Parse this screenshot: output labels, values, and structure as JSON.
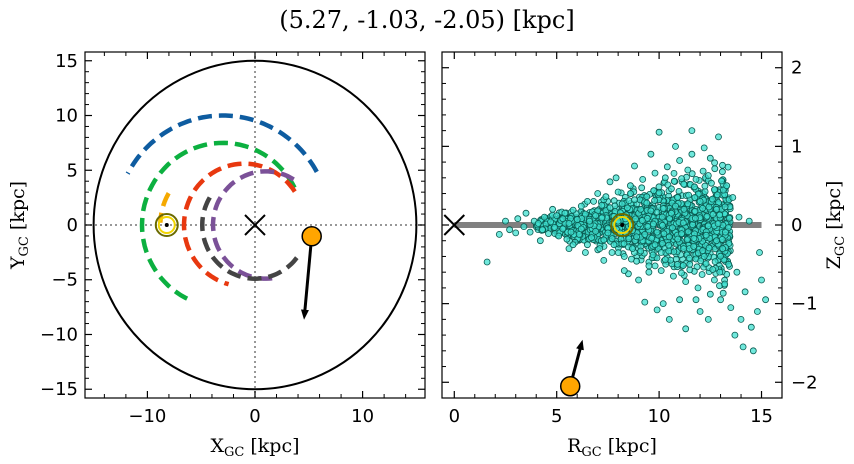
{
  "title": "(5.27, -1.03, -2.05) [kpc]",
  "chart_data": [
    {
      "type": "line",
      "panel": "left",
      "xlabel": "X",
      "xlabel_sub": "GC",
      "xlabel_unit": " [kpc]",
      "ylabel": "Y",
      "ylabel_sub": "GC",
      "ylabel_unit": " [kpc]",
      "xlim": [
        -15.8,
        15.8
      ],
      "ylim": [
        -15.8,
        15.8
      ],
      "xticks": [
        -10,
        0,
        10
      ],
      "xtick_labels": [
        "−10",
        "0",
        "10"
      ],
      "yticks": [
        -15,
        -10,
        -5,
        0,
        5,
        10,
        15
      ],
      "ytick_labels": [
        "−15",
        "−10",
        "−5",
        "0",
        "5",
        "10",
        "15"
      ],
      "boundary_circle_radius": 15,
      "arcs": [
        {
          "color": "#0e5ca0",
          "center": [
            -3.0,
            0.0
          ],
          "radius": 10.0,
          "theta_deg": [
            29,
            152
          ]
        },
        {
          "color": "#0cb040",
          "center": [
            -3.0,
            0.0
          ],
          "radius": 7.5,
          "theta_deg": [
            27,
            246
          ]
        },
        {
          "color": "#f5a900",
          "center": [
            -3.0,
            0.0
          ],
          "radius": 5.8,
          "theta_deg": [
            150,
            178
          ]
        },
        {
          "color": "#e8380f",
          "center": [
            -1.0,
            0.0
          ],
          "radius": 5.6,
          "theta_deg": [
            33,
            255
          ]
        },
        {
          "color": "#7b5198",
          "center": [
            1.0,
            0.0
          ],
          "radius": 4.9,
          "theta_deg": [
            58,
            278
          ]
        },
        {
          "color": "#444444",
          "center": [
            0.0,
            0.0
          ],
          "radius": 4.9,
          "theta_deg": [
            149,
            326
          ]
        }
      ],
      "galactic_center": [
        0,
        0
      ],
      "sun_position": [
        -8.2,
        0.0
      ],
      "object_position": [
        5.27,
        -1.03
      ],
      "velocity_arrow_end": [
        4.6,
        -8.2
      ],
      "marker_colors": {
        "object": "#ffa500",
        "sun_outer": "#6b6b00",
        "sun_inner": "#f2d600"
      }
    },
    {
      "type": "scatter",
      "panel": "right",
      "xlabel": "R",
      "xlabel_sub": "GC",
      "xlabel_unit": " [kpc]",
      "ylabel": "Z",
      "ylabel_sub": "GC",
      "ylabel_unit": " [kpc]",
      "xlim": [
        -0.6,
        16.0
      ],
      "ylim": [
        -2.2,
        2.2
      ],
      "xticks": [
        0,
        5,
        10,
        15
      ],
      "xtick_labels": [
        "0",
        "5",
        "10",
        "15"
      ],
      "yticks": [
        -2,
        -1,
        0,
        1,
        2
      ],
      "ytick_labels": [
        "−2",
        "−1",
        "0",
        "1",
        "2"
      ],
      "disk_line": {
        "x": [
          0,
          15
        ],
        "y": 0,
        "color": "#808080"
      },
      "galactic_center": [
        0,
        0
      ],
      "sun_position": [
        8.2,
        0.0
      ],
      "object_position": [
        5.66,
        -2.05
      ],
      "velocity_arrow_end": [
        6.2,
        -1.52
      ],
      "points_color": "#40e0d0",
      "points_edge": "#0a5a50",
      "points": [
        [
          1.6,
          -0.47
        ],
        [
          2.2,
          -0.12
        ],
        [
          2.7,
          -0.06
        ],
        [
          3.1,
          0.08
        ],
        [
          3.4,
          -0.02
        ],
        [
          3.7,
          -0.09
        ],
        [
          3.9,
          0.05
        ],
        [
          4.1,
          0.02
        ],
        [
          4.3,
          -0.06
        ],
        [
          4.4,
          0.1
        ],
        [
          4.6,
          -0.11
        ],
        [
          4.7,
          0.04
        ],
        [
          4.9,
          -0.03
        ],
        [
          5.0,
          0.12
        ],
        [
          5.1,
          -0.14
        ],
        [
          5.2,
          0.06
        ],
        [
          5.3,
          -0.05
        ],
        [
          5.4,
          0.15
        ],
        [
          5.5,
          -0.18
        ],
        [
          5.6,
          0.02
        ],
        [
          5.7,
          -0.09
        ],
        [
          5.8,
          0.19
        ],
        [
          5.9,
          -0.22
        ],
        [
          6.0,
          0.07
        ],
        [
          6.1,
          -0.12
        ],
        [
          6.2,
          0.24
        ],
        [
          6.3,
          -0.03
        ],
        [
          6.4,
          0.14
        ],
        [
          6.5,
          -0.25
        ],
        [
          6.6,
          0.05
        ],
        [
          6.7,
          -0.16
        ],
        [
          6.8,
          0.3
        ],
        [
          6.9,
          -0.08
        ],
        [
          7.0,
          0.18
        ],
        [
          7.1,
          -0.3
        ],
        [
          7.2,
          0.09
        ],
        [
          7.3,
          -0.19
        ],
        [
          7.4,
          0.36
        ],
        [
          7.5,
          -0.04
        ],
        [
          7.6,
          0.22
        ],
        [
          7.7,
          -0.35
        ],
        [
          7.8,
          0.11
        ],
        [
          7.9,
          -0.24
        ],
        [
          8.0,
          0.42
        ],
        [
          8.1,
          -0.1
        ],
        [
          8.2,
          0.27
        ],
        [
          8.3,
          -0.4
        ],
        [
          8.4,
          0.13
        ],
        [
          8.5,
          -0.28
        ],
        [
          8.6,
          0.5
        ],
        [
          8.7,
          -0.07
        ],
        [
          8.8,
          0.32
        ],
        [
          8.9,
          -0.46
        ],
        [
          9.0,
          0.15
        ],
        [
          9.1,
          -0.33
        ],
        [
          9.2,
          0.58
        ],
        [
          9.3,
          -0.12
        ],
        [
          9.4,
          0.36
        ],
        [
          9.5,
          -0.52
        ],
        [
          9.6,
          0.18
        ],
        [
          9.7,
          -0.38
        ],
        [
          9.8,
          0.66
        ],
        [
          9.9,
          -0.09
        ],
        [
          10.0,
          0.41
        ],
        [
          10.1,
          -0.58
        ],
        [
          10.2,
          0.21
        ],
        [
          10.3,
          -0.44
        ],
        [
          10.4,
          0.74
        ],
        [
          10.5,
          -0.15
        ],
        [
          10.6,
          0.46
        ],
        [
          10.7,
          -0.65
        ],
        [
          10.8,
          0.24
        ],
        [
          10.9,
          -0.5
        ],
        [
          11.0,
          0.82
        ],
        [
          11.1,
          -0.11
        ],
        [
          11.2,
          0.52
        ],
        [
          11.3,
          -0.72
        ],
        [
          11.4,
          0.27
        ],
        [
          11.5,
          -0.57
        ],
        [
          11.6,
          0.9
        ],
        [
          11.7,
          -0.17
        ],
        [
          11.8,
          0.58
        ],
        [
          11.9,
          -0.8
        ],
        [
          12.0,
          0.3
        ],
        [
          12.1,
          -0.63
        ],
        [
          12.2,
          0.98
        ],
        [
          12.3,
          -0.13
        ],
        [
          12.4,
          0.63
        ],
        [
          12.5,
          -0.88
        ],
        [
          12.6,
          0.33
        ],
        [
          12.7,
          -0.7
        ],
        [
          12.8,
          -0.2
        ],
        [
          13.0,
          -0.95
        ],
        [
          13.3,
          0.5
        ],
        [
          13.5,
          -1.05
        ],
        [
          13.8,
          -0.6
        ],
        [
          14.0,
          -1.2
        ],
        [
          14.2,
          -0.85
        ],
        [
          14.5,
          -1.3
        ],
        [
          14.8,
          -1.1
        ],
        [
          15.2,
          -0.95
        ],
        [
          10.0,
          1.18
        ],
        [
          11.6,
          1.2
        ],
        [
          12.9,
          1.12
        ],
        [
          9.3,
          -0.98
        ],
        [
          9.9,
          -1.08
        ],
        [
          10.5,
          -1.2
        ],
        [
          11.3,
          -1.32
        ],
        [
          10.2,
          -1.0
        ],
        [
          8.5,
          -0.62
        ],
        [
          12.0,
          -1.1
        ],
        [
          14.1,
          -1.55
        ],
        [
          14.6,
          -1.6
        ],
        [
          13.7,
          -1.4
        ],
        [
          11.0,
          -0.95
        ],
        [
          9.6,
          0.9
        ],
        [
          8.8,
          0.75
        ],
        [
          7.6,
          0.55
        ],
        [
          10.8,
          1.0
        ],
        [
          12.5,
          0.85
        ],
        [
          5.6,
          -0.3
        ],
        [
          6.4,
          -0.35
        ],
        [
          7.3,
          -0.45
        ],
        [
          7.9,
          0.6
        ],
        [
          8.3,
          -0.58
        ],
        [
          9.0,
          -0.7
        ],
        [
          11.8,
          -0.95
        ],
        [
          12.4,
          -1.2
        ],
        [
          13.2,
          -0.75
        ],
        [
          13.6,
          0.35
        ],
        [
          12.7,
          0.45
        ],
        [
          11.4,
          0.7
        ],
        [
          10.3,
          0.6
        ],
        [
          9.5,
          -0.6
        ],
        [
          8.6,
          0.4
        ],
        [
          7.0,
          0.4
        ],
        [
          6.5,
          0.3
        ],
        [
          5.8,
          -0.25
        ],
        [
          4.8,
          0.2
        ],
        [
          4.2,
          -0.2
        ],
        [
          3.5,
          0.15
        ],
        [
          3.0,
          -0.1
        ],
        [
          2.5,
          0.05
        ],
        [
          13.9,
          0.1
        ],
        [
          14.4,
          0.05
        ],
        [
          14.9,
          -0.35
        ],
        [
          15.0,
          -0.7
        ],
        [
          13.1,
          -0.3
        ],
        [
          12.2,
          -0.4
        ],
        [
          11.2,
          -0.3
        ],
        [
          10.6,
          0.15
        ],
        [
          9.8,
          -0.25
        ],
        [
          9.1,
          0.2
        ],
        [
          8.9,
          -0.15
        ],
        [
          8.0,
          0.05
        ],
        [
          7.5,
          -0.1
        ],
        [
          6.9,
          0.12
        ],
        [
          6.2,
          -0.05
        ],
        [
          5.3,
          0.08
        ],
        [
          12.8,
          0.2
        ],
        [
          13.4,
          -0.5
        ],
        [
          11.5,
          -0.5
        ],
        [
          10.9,
          0.35
        ],
        [
          10.1,
          -0.35
        ],
        [
          9.4,
          0.28
        ],
        [
          8.7,
          -0.3
        ],
        [
          7.8,
          -0.25
        ],
        [
          7.2,
          0.25
        ]
      ]
    }
  ]
}
